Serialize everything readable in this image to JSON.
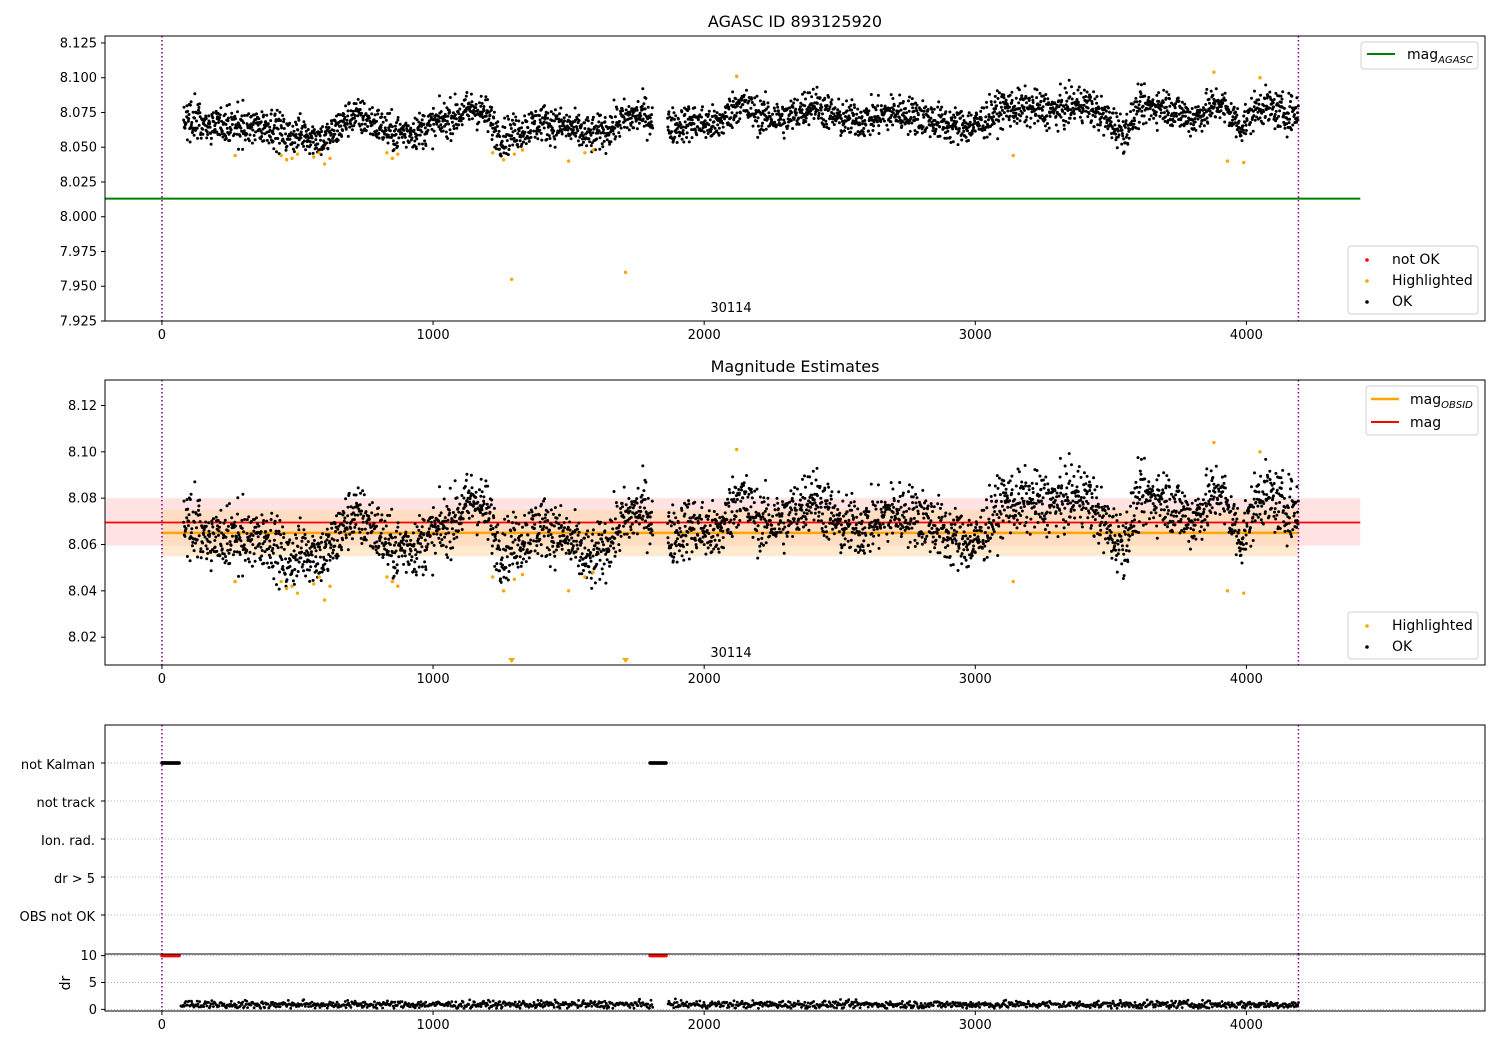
{
  "colors": {
    "ok": "#000000",
    "highlighted": "#ffa500",
    "not_ok": "#ff0000",
    "mag_agasc": "#008000",
    "mag_obsid": "#ffa500",
    "mag": "#ff0000",
    "obsid_boundary": "#800080",
    "grid": "#b0b0b0",
    "band_mag": "#ffc0c0",
    "band_obsid": "#ffd8a8"
  },
  "chart_data": [
    {
      "type": "scatter",
      "title": "AGASC ID 893125920",
      "xlim": [
        -210,
        4880
      ],
      "ylim": [
        7.925,
        8.13
      ],
      "xticks": [
        0,
        1000,
        2000,
        3000,
        4000
      ],
      "yticks": [
        "7.925",
        "7.950",
        "7.975",
        "8.000",
        "8.025",
        "8.050",
        "8.075",
        "8.100",
        "8.125"
      ],
      "obsid_label": "30114",
      "obsid_label_x": 2090,
      "obsid_boundaries": [
        0,
        4192
      ],
      "reference_lines": [
        {
          "name": "mag_AGASC",
          "label_main": "mag",
          "label_sub": "AGASC",
          "y": 8.013,
          "x_range": [
            -210,
            4420
          ],
          "color": "#008000"
        }
      ],
      "trend": [
        [
          80,
          8.072
        ],
        [
          200,
          8.066
        ],
        [
          300,
          8.064
        ],
        [
          400,
          8.066
        ],
        [
          460,
          8.058
        ],
        [
          520,
          8.06
        ],
        [
          600,
          8.055
        ],
        [
          700,
          8.073
        ],
        [
          760,
          8.07
        ],
        [
          850,
          8.06
        ],
        [
          950,
          8.062
        ],
        [
          1050,
          8.07
        ],
        [
          1150,
          8.078
        ],
        [
          1200,
          8.073
        ],
        [
          1250,
          8.057
        ],
        [
          1320,
          8.062
        ],
        [
          1400,
          8.068
        ],
        [
          1500,
          8.064
        ],
        [
          1580,
          8.058
        ],
        [
          1640,
          8.062
        ],
        [
          1700,
          8.07
        ],
        [
          1780,
          8.074
        ],
        [
          1850,
          8.064
        ],
        [
          1950,
          8.068
        ],
        [
          2050,
          8.066
        ],
        [
          2130,
          8.082
        ],
        [
          2200,
          8.073
        ],
        [
          2300,
          8.07
        ],
        [
          2400,
          8.082
        ],
        [
          2500,
          8.07
        ],
        [
          2600,
          8.07
        ],
        [
          2700,
          8.075
        ],
        [
          2800,
          8.072
        ],
        [
          2900,
          8.066
        ],
        [
          3000,
          8.065
        ],
        [
          3100,
          8.078
        ],
        [
          3200,
          8.078
        ],
        [
          3300,
          8.076
        ],
        [
          3400,
          8.082
        ],
        [
          3500,
          8.068
        ],
        [
          3550,
          8.06
        ],
        [
          3600,
          8.078
        ],
        [
          3700,
          8.08
        ],
        [
          3800,
          8.07
        ],
        [
          3900,
          8.082
        ],
        [
          3980,
          8.065
        ],
        [
          4050,
          8.08
        ],
        [
          4150,
          8.074
        ],
        [
          4192,
          8.075
        ]
      ],
      "highlighted": [
        [
          270,
          8.044
        ],
        [
          440,
          8.044
        ],
        [
          460,
          8.041
        ],
        [
          480,
          8.042
        ],
        [
          500,
          8.045
        ],
        [
          560,
          8.043
        ],
        [
          580,
          8.046
        ],
        [
          600,
          8.038
        ],
        [
          620,
          8.042
        ],
        [
          830,
          8.046
        ],
        [
          850,
          8.042
        ],
        [
          870,
          8.045
        ],
        [
          1220,
          8.046
        ],
        [
          1260,
          8.041
        ],
        [
          1300,
          8.045
        ],
        [
          1330,
          8.048
        ],
        [
          1500,
          8.04
        ],
        [
          1560,
          8.046
        ],
        [
          1590,
          8.048
        ],
        [
          2120,
          8.101
        ],
        [
          3140,
          8.044
        ],
        [
          3880,
          8.104
        ],
        [
          3930,
          8.04
        ],
        [
          3990,
          8.039
        ],
        [
          4050,
          8.1
        ],
        [
          1290,
          7.955
        ],
        [
          1710,
          7.96
        ]
      ],
      "legend": [
        "not OK",
        "Highlighted",
        "OK"
      ]
    },
    {
      "type": "scatter",
      "title": "Magnitude Estimates",
      "xlim": [
        -210,
        4880
      ],
      "ylim": [
        8.008,
        8.131
      ],
      "xticks": [
        0,
        1000,
        2000,
        3000,
        4000
      ],
      "yticks": [
        "8.02",
        "8.04",
        "8.06",
        "8.08",
        "8.10",
        "8.12"
      ],
      "obsid_label": "30114",
      "obsid_label_x": 2090,
      "obsid_boundaries": [
        0,
        4192
      ],
      "reference_lines": [
        {
          "name": "mag_OBSID",
          "label_main": "mag",
          "label_sub": "OBSID",
          "y": 8.065,
          "band": [
            8.055,
            8.075
          ],
          "x_range": [
            0,
            4192
          ],
          "color": "#ffa500"
        },
        {
          "name": "mag",
          "label_main": "mag",
          "label_sub": "",
          "y": 8.0695,
          "band": [
            8.0595,
            8.08
          ],
          "x_range": [
            -210,
            4420
          ],
          "color": "#ff0000"
        }
      ],
      "trend": [
        [
          80,
          8.072
        ],
        [
          200,
          8.062
        ],
        [
          300,
          8.062
        ],
        [
          400,
          8.063
        ],
        [
          460,
          8.052
        ],
        [
          520,
          8.058
        ],
        [
          600,
          8.055
        ],
        [
          700,
          8.073
        ],
        [
          760,
          8.07
        ],
        [
          850,
          8.058
        ],
        [
          950,
          8.06
        ],
        [
          1050,
          8.068
        ],
        [
          1150,
          8.08
        ],
        [
          1200,
          8.074
        ],
        [
          1250,
          8.057
        ],
        [
          1320,
          8.062
        ],
        [
          1400,
          8.068
        ],
        [
          1500,
          8.062
        ],
        [
          1580,
          8.052
        ],
        [
          1640,
          8.06
        ],
        [
          1700,
          8.07
        ],
        [
          1780,
          8.076
        ],
        [
          1850,
          8.062
        ],
        [
          1950,
          8.068
        ],
        [
          2050,
          8.064
        ],
        [
          2130,
          8.082
        ],
        [
          2200,
          8.07
        ],
        [
          2300,
          8.07
        ],
        [
          2400,
          8.082
        ],
        [
          2500,
          8.068
        ],
        [
          2600,
          8.068
        ],
        [
          2700,
          8.074
        ],
        [
          2800,
          8.072
        ],
        [
          2900,
          8.064
        ],
        [
          3000,
          8.06
        ],
        [
          3100,
          8.078
        ],
        [
          3200,
          8.078
        ],
        [
          3300,
          8.078
        ],
        [
          3400,
          8.082
        ],
        [
          3500,
          8.065
        ],
        [
          3550,
          8.06
        ],
        [
          3600,
          8.08
        ],
        [
          3700,
          8.08
        ],
        [
          3800,
          8.07
        ],
        [
          3900,
          8.084
        ],
        [
          3980,
          8.062
        ],
        [
          4050,
          8.082
        ],
        [
          4150,
          8.076
        ],
        [
          4192,
          8.074
        ]
      ],
      "highlighted": [
        [
          270,
          8.044
        ],
        [
          440,
          8.044
        ],
        [
          460,
          8.041
        ],
        [
          480,
          8.042
        ],
        [
          500,
          8.039
        ],
        [
          560,
          8.043
        ],
        [
          580,
          8.046
        ],
        [
          600,
          8.036
        ],
        [
          620,
          8.042
        ],
        [
          830,
          8.046
        ],
        [
          850,
          8.044
        ],
        [
          870,
          8.042
        ],
        [
          1220,
          8.046
        ],
        [
          1260,
          8.04
        ],
        [
          1300,
          8.045
        ],
        [
          1330,
          8.047
        ],
        [
          1500,
          8.04
        ],
        [
          1560,
          8.046
        ],
        [
          1590,
          8.048
        ],
        [
          2120,
          8.101
        ],
        [
          3140,
          8.044
        ],
        [
          3880,
          8.104
        ],
        [
          3930,
          8.04
        ],
        [
          3990,
          8.039
        ],
        [
          4050,
          8.1
        ]
      ],
      "offscale_markers": [
        1290,
        1710
      ],
      "legend": [
        "Highlighted",
        "OK"
      ]
    },
    {
      "type": "scatter",
      "title": "",
      "xlim": [
        -210,
        4880
      ],
      "xticks": [
        0,
        1000,
        2000,
        3000,
        4000
      ],
      "flag_rows": [
        "not Kalman",
        "not track",
        "Ion. rad.",
        "dr > 5",
        "OBS not OK"
      ],
      "flag_intervals": [
        {
          "row": "not Kalman",
          "x": [
            0,
            65
          ]
        },
        {
          "row": "not Kalman",
          "x": [
            1800,
            1860
          ]
        }
      ],
      "obsid_boundaries": [
        0,
        4192
      ]
    },
    {
      "type": "scatter",
      "title": "",
      "ylabel": "dr",
      "xlim": [
        -210,
        4880
      ],
      "ylim": [
        -0.3,
        10.3
      ],
      "xticks": [
        0,
        1000,
        2000,
        3000,
        4000
      ],
      "yticks": [
        "0",
        "5",
        "10"
      ],
      "obsid_boundaries": [
        0,
        4192
      ],
      "clipped_intervals": [
        [
          0,
          65
        ],
        [
          1800,
          1860
        ]
      ],
      "clip_value": 10,
      "dr_gaps": [
        [
          0,
          60
        ],
        [
          1800,
          1860
        ]
      ]
    }
  ]
}
